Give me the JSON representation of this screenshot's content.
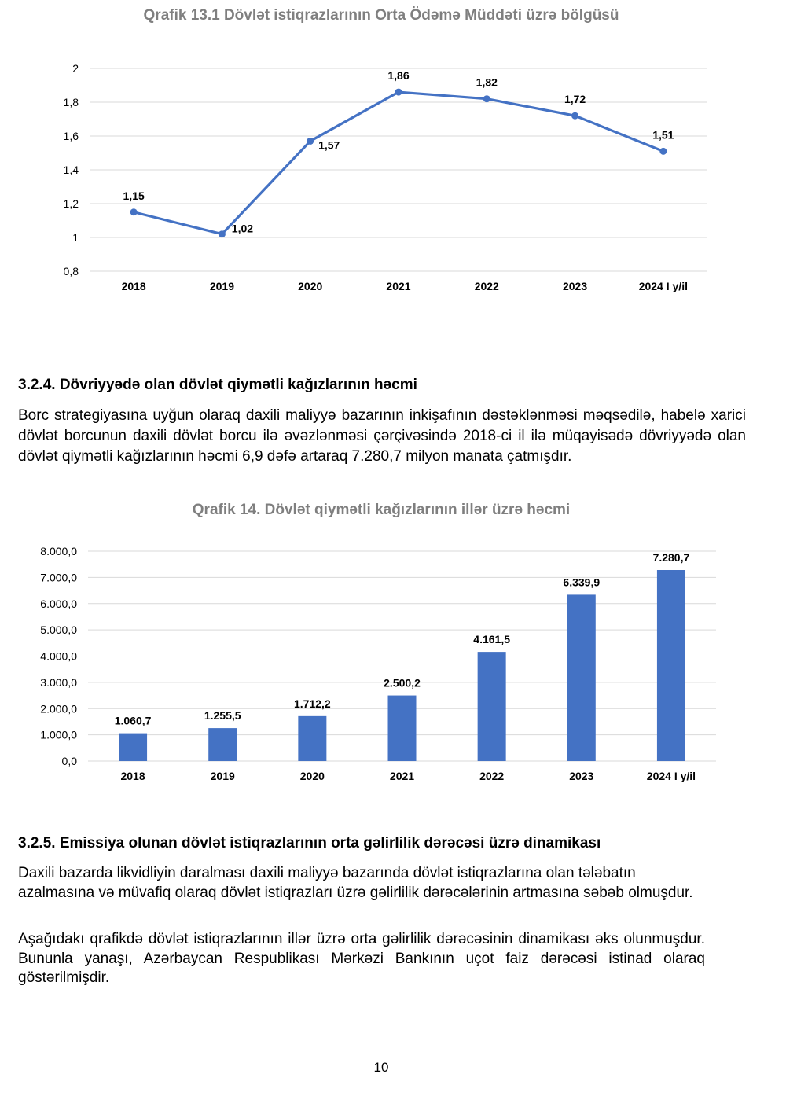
{
  "chart_data": [
    {
      "type": "line",
      "title": "Qrafik 13.1 Dövlət istiqrazlarının Orta Ödəmə Müddəti üzrə bölgüsü",
      "categories": [
        "2018",
        "2019",
        "2020",
        "2021",
        "2022",
        "2023",
        "2024 I y/il"
      ],
      "values": [
        1.15,
        1.02,
        1.57,
        1.86,
        1.82,
        1.72,
        1.51
      ],
      "data_labels": [
        "1,15",
        "1,02",
        "1,57",
        "1,86",
        "1,82",
        "1,72",
        "1,51"
      ],
      "ylim": [
        0.8,
        2
      ],
      "yticks": [
        "0,8",
        "1",
        "1,2",
        "1,4",
        "1,6",
        "1,8",
        "2"
      ],
      "grid": true,
      "color": "#4472C4"
    },
    {
      "type": "bar",
      "title": "Qrafik 14. Dövlət qiymətli kağızlarının illər üzrə həcmi",
      "categories": [
        "2018",
        "2019",
        "2020",
        "2021",
        "2022",
        "2023",
        "2024 I y/il"
      ],
      "values": [
        1060.7,
        1255.5,
        1712.2,
        2500.2,
        4161.5,
        6339.9,
        7280.7
      ],
      "data_labels": [
        "1.060,7",
        "1.255,5",
        "1.712,2",
        "2.500,2",
        "4.161,5",
        "6.339,9",
        "7.280,7"
      ],
      "ylim": [
        0,
        8000
      ],
      "yticks": [
        "0,0",
        "1.000,0",
        "2.000,0",
        "3.000,0",
        "4.000,0",
        "5.000,0",
        "6.000,0",
        "7.000,0",
        "8.000,0"
      ],
      "grid": true,
      "color": "#4472C4"
    }
  ],
  "section_324": {
    "heading": "3.2.4. Dövriyyədə olan dövlət qiymətli kağızlarının həcmi",
    "paragraph": "Borc strategiyasına uyğun olaraq daxili maliyyə bazarının inkişafının dəstəklənməsi məqsədilə, habelə xarici dövlət borcunun daxili dövlət borcu ilə əvəzlənməsi çərçivəsində 2018-ci il ilə müqayisədə dövriyyədə olan dövlət qiymətli kağızlarının həcmi 6,9 dəfə artaraq 7.280,7 milyon manata çatmışdır."
  },
  "section_325": {
    "heading": "3.2.5. Emissiya olunan dövlət istiqrazlarının orta gəlirlilik dərəcəsi üzrə dinamikası",
    "paragraph1": "Daxili bazarda likvidliyin daralması daxili maliyyə bazarında dövlət istiqrazlarına olan tələbatın azalmasına və müvafiq olaraq dövlət istiqrazları üzrə gəlirlilik dərəcələrinin artmasına səbəb olmuşdur.",
    "paragraph2": "Aşağıdakı qrafikdə dövlət istiqrazlarının illər üzrə orta gəlirlilik dərəcəsinin dinamikası əks olunmuşdur. Bununla yanaşı, Azərbaycan Respublikası Mərkəzi Bankının uçot faiz dərəcəsi istinad olaraq göstərilmişdir."
  },
  "page_number": "10"
}
